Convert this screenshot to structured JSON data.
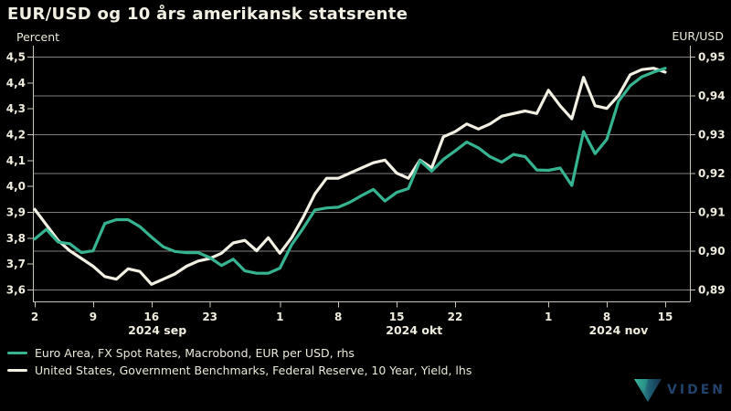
{
  "header": {
    "title": "EUR/USD og 10 års amerikansk statsrente"
  },
  "axes_labels": {
    "left": "Percent",
    "right": "EUR/USD"
  },
  "legend": [
    {
      "label": "Euro Area, FX Spot Rates, Macrobond, EUR per USD, rhs",
      "color": "#36b491"
    },
    {
      "label": "United States, Government Benchmarks, Federal Reserve, 10 Year, Yield, lhs",
      "color": "#f2efe3"
    }
  ],
  "logo": {
    "text": "VIDEN"
  },
  "colors": {
    "background": "#000000",
    "text": "#f0eddf",
    "grid": "#7f7f7f",
    "axis": "#c9c6b9",
    "series_eur": "#36b491",
    "series_us": "#f2efe3",
    "logo_text": "#21426a"
  },
  "chart_data": {
    "type": "line",
    "title": "EUR/USD og 10 års amerikansk statsrente",
    "grid": "horizontal, at right-axis ticks",
    "legend_position": "bottom-left",
    "x_dates": [
      "2024-09-02",
      "2024-09-03",
      "2024-09-04",
      "2024-09-05",
      "2024-09-06",
      "2024-09-09",
      "2024-09-10",
      "2024-09-11",
      "2024-09-12",
      "2024-09-13",
      "2024-09-16",
      "2024-09-17",
      "2024-09-18",
      "2024-09-19",
      "2024-09-20",
      "2024-09-23",
      "2024-09-24",
      "2024-09-25",
      "2024-09-26",
      "2024-09-27",
      "2024-09-30",
      "2024-10-01",
      "2024-10-02",
      "2024-10-03",
      "2024-10-04",
      "2024-10-07",
      "2024-10-08",
      "2024-10-09",
      "2024-10-10",
      "2024-10-11",
      "2024-10-14",
      "2024-10-15",
      "2024-10-16",
      "2024-10-17",
      "2024-10-18",
      "2024-10-21",
      "2024-10-22",
      "2024-10-23",
      "2024-10-24",
      "2024-10-25",
      "2024-10-28",
      "2024-10-29",
      "2024-10-30",
      "2024-10-31",
      "2024-11-01",
      "2024-11-04",
      "2024-11-05",
      "2024-11-06",
      "2024-11-07",
      "2024-11-08",
      "2024-11-11",
      "2024-11-12",
      "2024-11-13",
      "2024-11-14",
      "2024-11-15"
    ],
    "series": [
      {
        "name": "United States, Government Benchmarks, Federal Reserve, 10 Year, Yield, lhs",
        "axis": "left",
        "color": "#f2efe3",
        "values": [
          3.91,
          3.85,
          3.79,
          3.75,
          3.72,
          3.69,
          3.65,
          3.64,
          3.68,
          3.67,
          3.62,
          3.64,
          3.66,
          3.69,
          3.71,
          3.72,
          3.74,
          3.78,
          3.79,
          3.75,
          3.8,
          3.74,
          3.8,
          3.88,
          3.97,
          4.03,
          4.03,
          4.05,
          4.07,
          4.09,
          4.1,
          4.05,
          4.03,
          4.1,
          4.07,
          4.19,
          4.21,
          4.24,
          4.22,
          4.24,
          4.27,
          4.28,
          4.29,
          4.28,
          4.37,
          4.31,
          4.26,
          4.42,
          4.31,
          4.3,
          4.35,
          4.43,
          4.45,
          4.455,
          4.44
        ]
      },
      {
        "name": "Euro Area, FX Spot Rates, Macrobond, EUR per USD, rhs",
        "axis": "right",
        "color": "#36b491",
        "values": [
          0.903,
          0.9055,
          0.9022,
          0.9018,
          0.8995,
          0.9,
          0.907,
          0.908,
          0.908,
          0.9062,
          0.9035,
          0.901,
          0.8998,
          0.8995,
          0.8995,
          0.8982,
          0.8962,
          0.8978,
          0.8948,
          0.8942,
          0.8942,
          0.8955,
          0.9015,
          0.9058,
          0.9105,
          0.911,
          0.9112,
          0.9125,
          0.9142,
          0.9158,
          0.9128,
          0.915,
          0.916,
          0.9232,
          0.9205,
          0.9235,
          0.9257,
          0.928,
          0.9265,
          0.9242,
          0.9228,
          0.9248,
          0.9242,
          0.9208,
          0.9207,
          0.9213,
          0.9168,
          0.9307,
          0.925,
          0.9287,
          0.9385,
          0.9425,
          0.9448,
          0.946,
          0.947
        ]
      }
    ],
    "left_axis": {
      "label": "Percent",
      "min": 3.6,
      "max": 4.5,
      "ticks": [
        {
          "label": "4,5",
          "v": 4.5
        },
        {
          "label": "4,4",
          "v": 4.4
        },
        {
          "label": "4,3",
          "v": 4.3
        },
        {
          "label": "4,2",
          "v": 4.2
        },
        {
          "label": "4,1",
          "v": 4.1
        },
        {
          "label": "4,0",
          "v": 4.0
        },
        {
          "label": "3,9",
          "v": 3.9
        },
        {
          "label": "3,8",
          "v": 3.8
        },
        {
          "label": "3,7",
          "v": 3.7
        },
        {
          "label": "3,6",
          "v": 3.6
        }
      ]
    },
    "right_axis": {
      "label": "EUR/USD",
      "min": 0.89,
      "max": 0.95,
      "ticks": [
        {
          "label": "0,95",
          "v": 0.95
        },
        {
          "label": "0,94",
          "v": 0.94
        },
        {
          "label": "0,93",
          "v": 0.93
        },
        {
          "label": "0,92",
          "v": 0.92
        },
        {
          "label": "0,91",
          "v": 0.91
        },
        {
          "label": "0,90",
          "v": 0.9
        },
        {
          "label": "0,89",
          "v": 0.89
        }
      ]
    },
    "x_axis": {
      "ticks": [
        {
          "label": "2",
          "i": 0
        },
        {
          "label": "9",
          "i": 5
        },
        {
          "label": "16",
          "i": 10
        },
        {
          "label": "23",
          "i": 15
        },
        {
          "label": "1",
          "i": 21
        },
        {
          "label": "8",
          "i": 26
        },
        {
          "label": "15",
          "i": 31
        },
        {
          "label": "22",
          "i": 36
        },
        {
          "label": "1",
          "i": 44
        },
        {
          "label": "8",
          "i": 49
        },
        {
          "label": "15",
          "i": 54
        }
      ],
      "month_labels": [
        {
          "label": "2024 sep",
          "i": 10.5
        },
        {
          "label": "2024 okt",
          "i": 32.5
        },
        {
          "label": "2024 nov",
          "i": 50
        }
      ]
    }
  }
}
